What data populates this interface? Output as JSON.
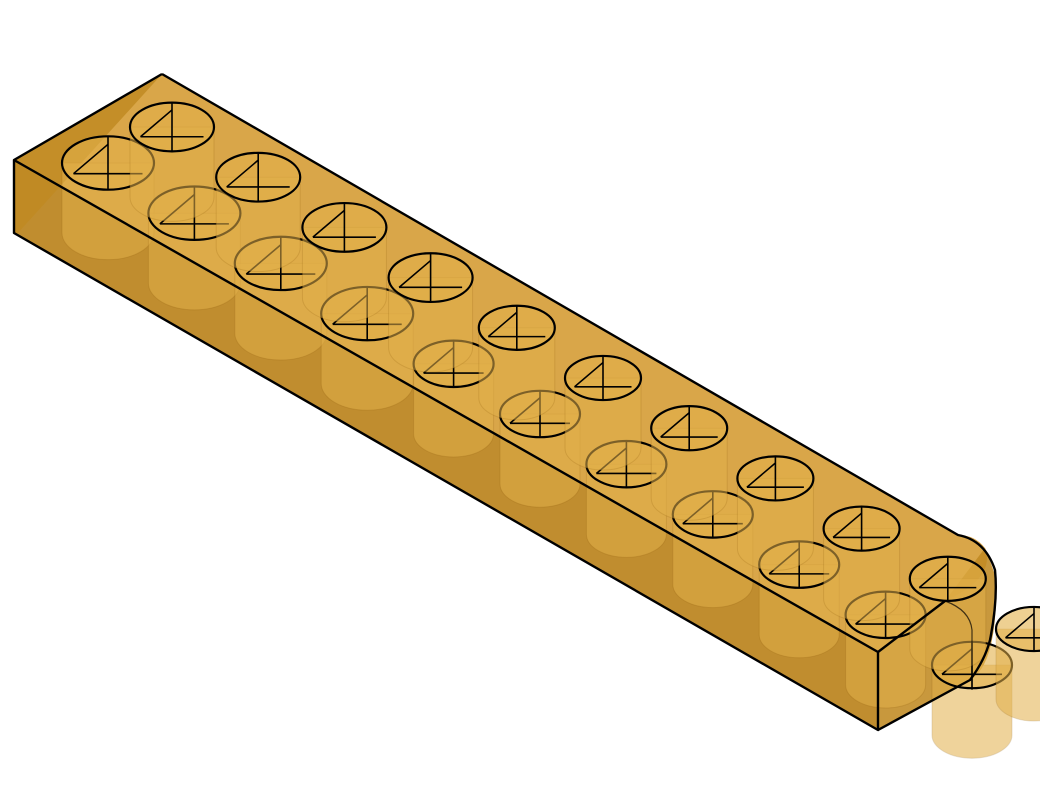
{
  "scene": {
    "object": "perforated-block",
    "colors": {
      "background": "#ffffff",
      "body": "#c98a1a",
      "body_top": "#d49a30",
      "body_front": "#b98118",
      "body_side": "#c08a22",
      "hole_inner": "#e2b04a",
      "edge": "#000000"
    },
    "rows": 2,
    "holes_per_row": 11
  }
}
